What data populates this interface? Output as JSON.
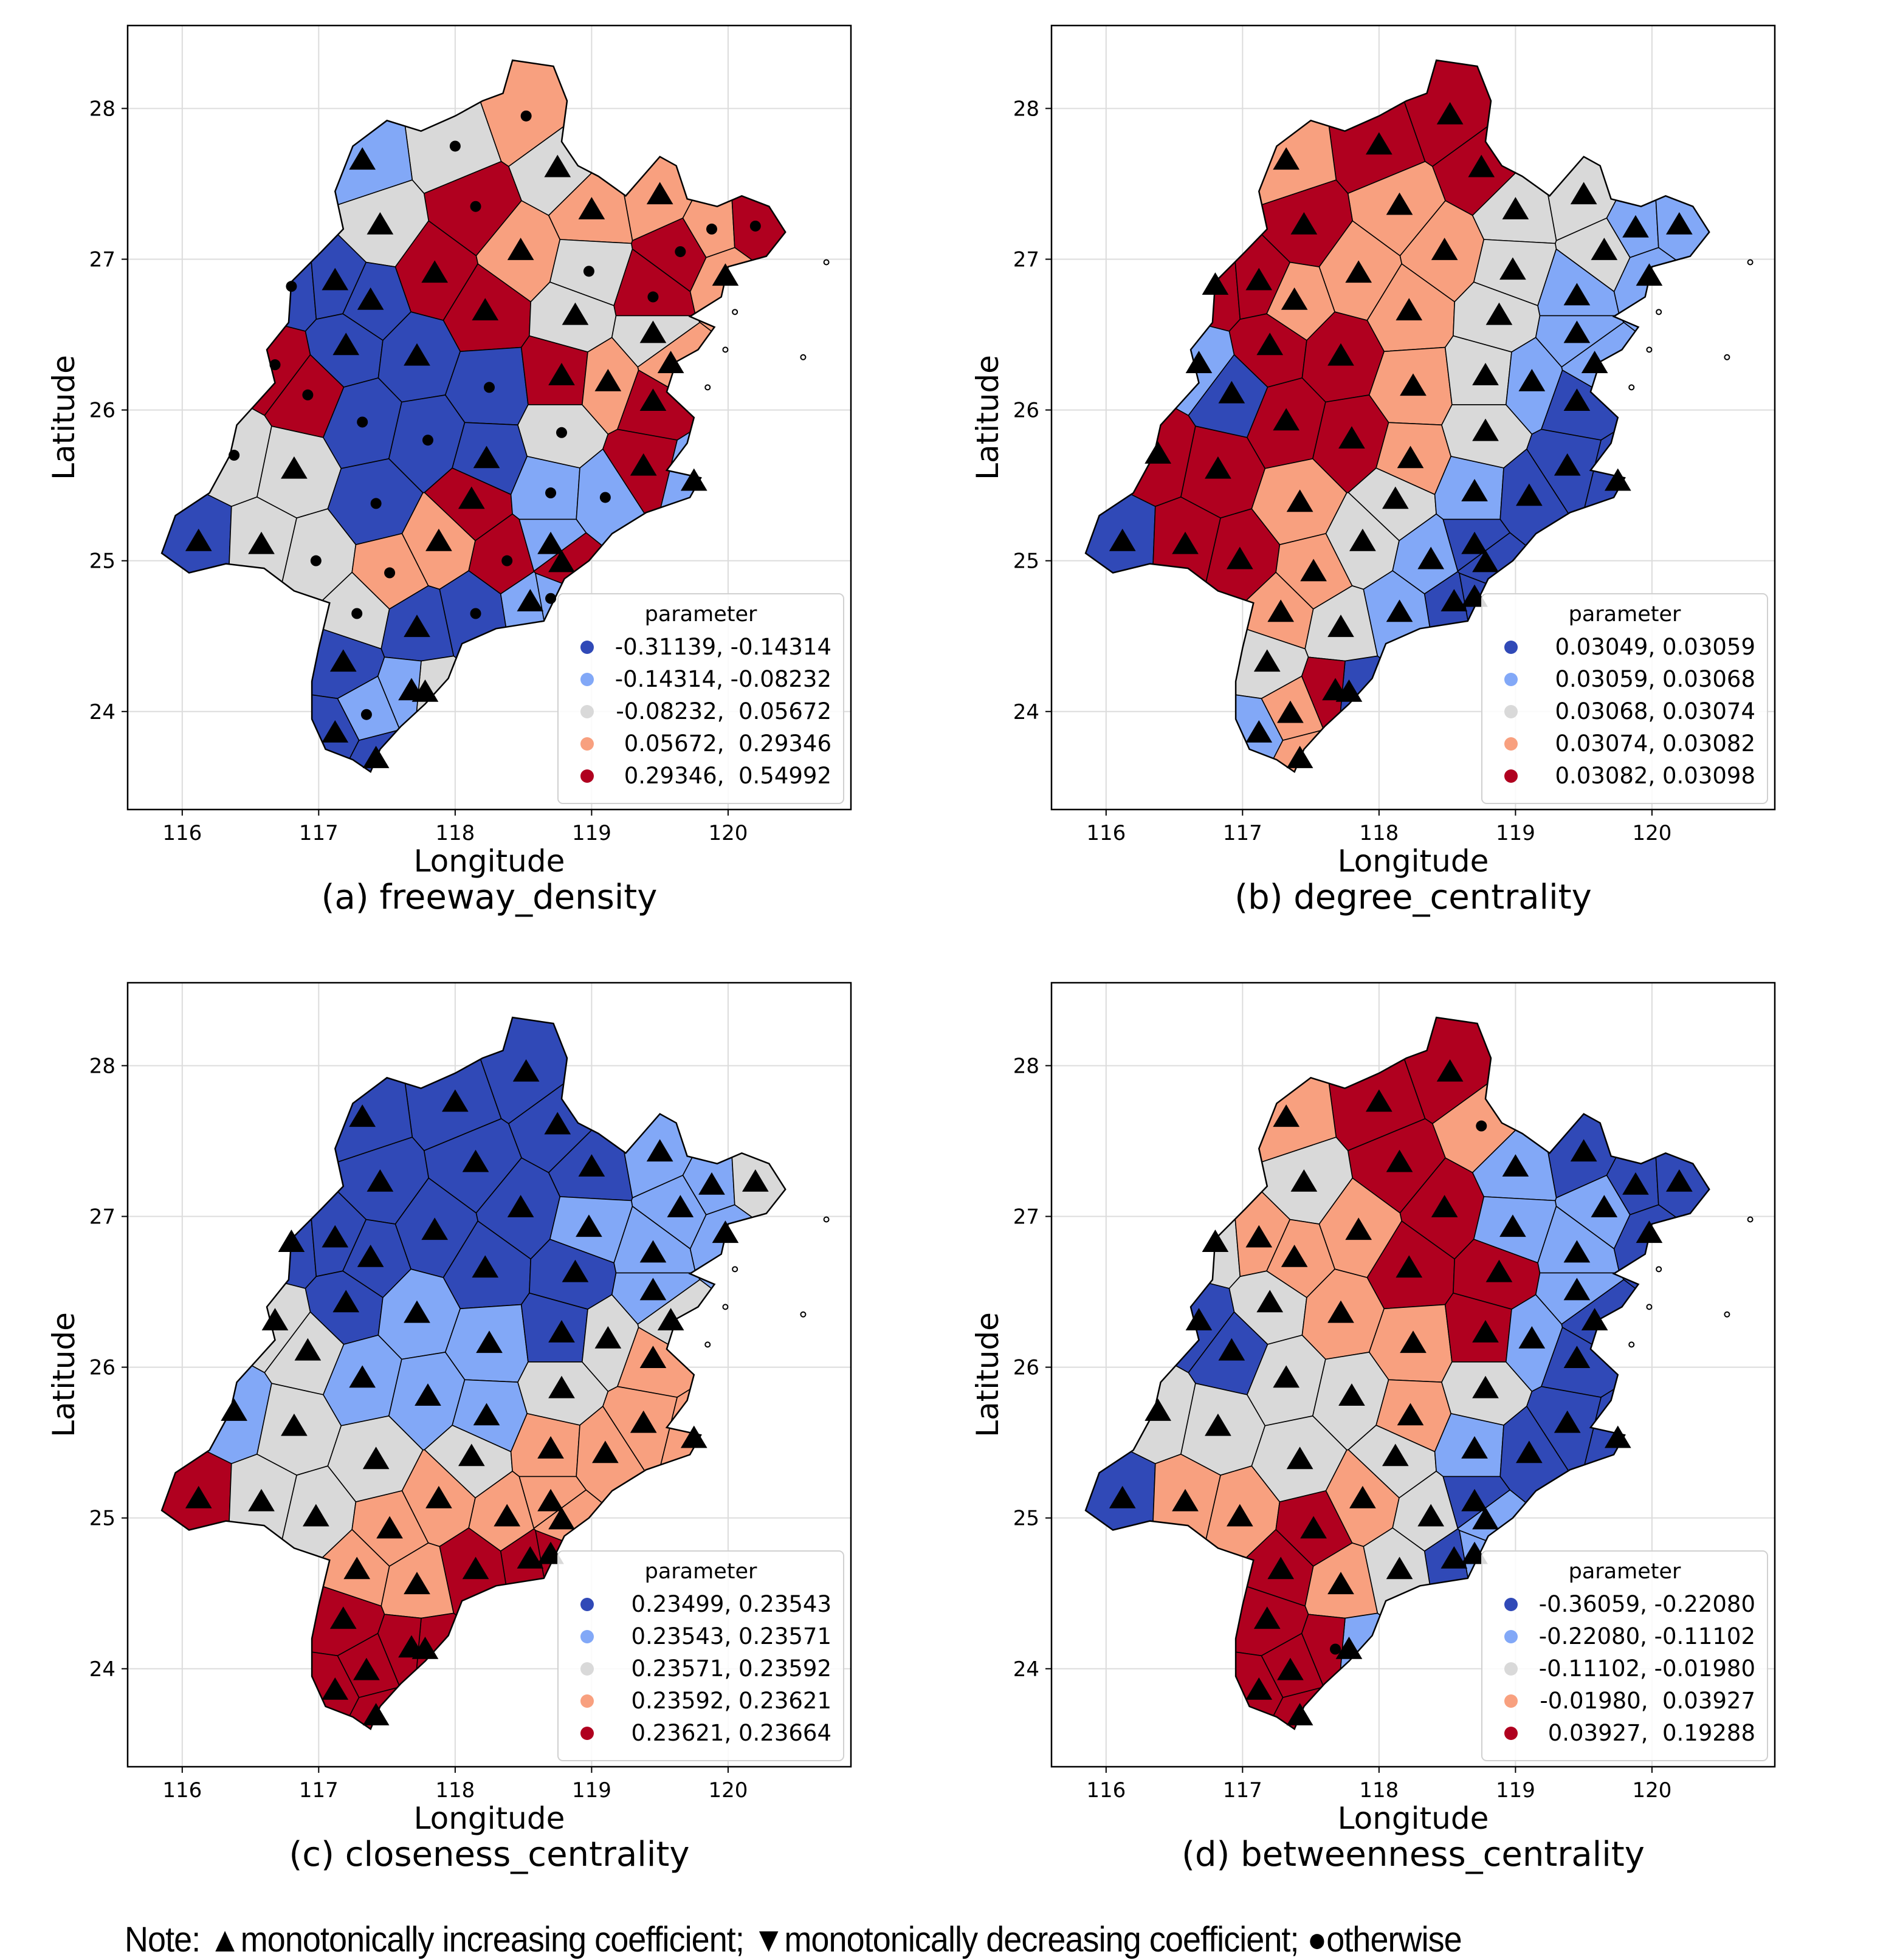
{
  "figure": {
    "note": {
      "prefix": "Note: ",
      "items": [
        {
          "symbol": "▲",
          "marker": "triangle-up",
          "text": "monotonically increasing coefficient; "
        },
        {
          "symbol": "▼",
          "marker": "triangle-down",
          "text": "monotonically decreasing coefficient; "
        },
        {
          "symbol": "●",
          "marker": "circle",
          "text": "otherwise"
        }
      ]
    },
    "class_colors": [
      "#3049b7",
      "#82a8f7",
      "#d9d9d9",
      "#f8a07f",
      "#b0001f"
    ]
  },
  "chart_data": [
    {
      "type": "choropleth",
      "id": "a",
      "title": "(a) freeway_density",
      "xlabel": "Longitude",
      "ylabel": "Latitude",
      "xlim": [
        115.6,
        120.9
      ],
      "ylim": [
        23.35,
        28.55
      ],
      "xticks": [
        "116",
        "117",
        "118",
        "119",
        "120"
      ],
      "yticks": [
        "24",
        "25",
        "26",
        "27",
        "28"
      ],
      "grid": true,
      "legend": {
        "title": "parameter",
        "position": "bottom-right",
        "entries": [
          "-0.31139, -0.14314",
          "-0.14314, -0.08232",
          "-0.08232,  0.05672",
          " 0.05672,  0.29346",
          " 0.29346,  0.54992"
        ]
      },
      "classes": [
        2,
        3,
        2,
        1,
        4,
        3,
        2,
        4,
        3,
        2,
        3,
        4,
        3,
        0,
        0,
        0,
        4,
        2,
        4,
        4,
        0,
        0,
        0,
        4,
        2,
        3,
        4,
        4,
        0,
        0,
        0,
        2,
        3,
        3,
        4,
        4,
        2,
        2,
        0,
        4,
        1,
        1,
        1,
        0,
        2,
        2,
        3,
        3,
        4,
        4,
        1,
        1,
        2,
        0,
        0,
        1,
        2,
        1,
        0,
        0,
        1,
        0
      ],
      "markers": [
        "c",
        "c",
        "t",
        "t",
        "c",
        "t",
        "t",
        "t",
        "t",
        "c",
        "t",
        "c",
        "c",
        "c",
        "t",
        "t",
        "t",
        "t",
        "c",
        "c",
        "t",
        "t",
        "c",
        "t",
        "t",
        "t",
        "c",
        "c",
        "c",
        "c",
        "t",
        "c",
        "t",
        "t",
        "t",
        "t",
        "c",
        "t",
        "c",
        "t",
        "c",
        "c",
        "t",
        "t",
        "t",
        "c",
        "c",
        "t",
        "c",
        "t",
        "t",
        "t",
        "c",
        "t",
        "c",
        "c",
        "t",
        "c",
        "t",
        "t",
        "t",
        "t"
      ]
    },
    {
      "type": "choropleth",
      "id": "b",
      "title": "(b) degree_centrality",
      "xlabel": "Longitude",
      "ylabel": "Latitude",
      "xlim": [
        115.6,
        120.9
      ],
      "ylim": [
        23.35,
        28.55
      ],
      "xticks": [
        "116",
        "117",
        "118",
        "119",
        "120"
      ],
      "yticks": [
        "24",
        "25",
        "26",
        "27",
        "28"
      ],
      "grid": true,
      "legend": {
        "title": "parameter",
        "position": "bottom-right",
        "entries": [
          "0.03049, 0.03059",
          "0.03059, 0.03068",
          "0.03068, 0.03074",
          "0.03074, 0.03082",
          "0.03082, 0.03098"
        ]
      },
      "classes": [
        4,
        4,
        4,
        3,
        3,
        3,
        4,
        3,
        2,
        2,
        2,
        2,
        1,
        4,
        4,
        3,
        3,
        2,
        1,
        1,
        4,
        4,
        3,
        2,
        1,
        1,
        1,
        0,
        4,
        4,
        3,
        2,
        1,
        1,
        0,
        0,
        4,
        4,
        3,
        2,
        1,
        0,
        0,
        0,
        4,
        4,
        3,
        2,
        1,
        0,
        0,
        0,
        3,
        2,
        1,
        0,
        0,
        3,
        2,
        1,
        4,
        3
      ],
      "markers": [
        "t",
        "t",
        "t",
        "t",
        "t",
        "t",
        "t",
        "t",
        "t",
        "t",
        "t",
        "t",
        "t",
        "t",
        "t",
        "t",
        "t",
        "t",
        "t",
        "t",
        "t",
        "t",
        "t",
        "t",
        "t",
        "t",
        "t",
        "t",
        "t",
        "t",
        "t",
        "t",
        "t",
        "t",
        "t",
        "t",
        "t",
        "t",
        "t",
        "t",
        "t",
        "t",
        "t",
        "t",
        "t",
        "t",
        "t",
        "t",
        "t",
        "t",
        "t",
        "t",
        "t",
        "t",
        "t",
        "t",
        "t",
        "t",
        "t",
        "t",
        "t",
        "t"
      ]
    },
    {
      "type": "choropleth",
      "id": "c",
      "title": "(c) closeness_centrality",
      "xlabel": "Longitude",
      "ylabel": "Latitude",
      "xlim": [
        115.6,
        120.9
      ],
      "ylim": [
        23.35,
        28.55
      ],
      "xticks": [
        "116",
        "117",
        "118",
        "119",
        "120"
      ],
      "yticks": [
        "24",
        "25",
        "26",
        "27",
        "28"
      ],
      "grid": true,
      "legend": {
        "title": "parameter",
        "position": "bottom-right",
        "entries": [
          "0.23499, 0.23543",
          "0.23543, 0.23571",
          "0.23571, 0.23592",
          "0.23592, 0.23621",
          "0.23621, 0.23664"
        ]
      },
      "classes": [
        0,
        0,
        0,
        0,
        0,
        0,
        0,
        0,
        0,
        1,
        1,
        1,
        1,
        0,
        0,
        0,
        0,
        0,
        1,
        2,
        0,
        1,
        1,
        0,
        1,
        1,
        2,
        2,
        1,
        1,
        1,
        2,
        2,
        2,
        3,
        3,
        1,
        2,
        2,
        2,
        3,
        3,
        3,
        4,
        2,
        2,
        3,
        3,
        3,
        3,
        3,
        4,
        3,
        3,
        4,
        4,
        4,
        4,
        4,
        4,
        4,
        4
      ],
      "markers": [
        "t",
        "t",
        "t",
        "t",
        "t",
        "t",
        "t",
        "t",
        "t",
        "t",
        "t",
        "t",
        "t",
        "t",
        "t",
        "t",
        "t",
        "t",
        "t",
        "t",
        "t",
        "t",
        "t",
        "t",
        "t",
        "t",
        "t",
        "t",
        "t",
        "t",
        "t",
        "t",
        "t",
        "t",
        "t",
        "t",
        "t",
        "t",
        "t",
        "t",
        "t",
        "t",
        "t",
        "t",
        "t",
        "t",
        "t",
        "t",
        "t",
        "t",
        "t",
        "t",
        "t",
        "t",
        "t",
        "t",
        "t",
        "t",
        "t",
        "t",
        "t",
        "t"
      ]
    },
    {
      "type": "choropleth",
      "id": "d",
      "title": "(d) betweenness_centrality",
      "xlabel": "Longitude",
      "ylabel": "Latitude",
      "xlim": [
        115.6,
        120.9
      ],
      "ylim": [
        23.35,
        28.55
      ],
      "xticks": [
        "116",
        "117",
        "118",
        "119",
        "120"
      ],
      "yticks": [
        "24",
        "25",
        "26",
        "27",
        "28"
      ],
      "grid": true,
      "legend": {
        "title": "parameter",
        "position": "bottom-right",
        "entries": [
          "-0.36059, -0.22080",
          "-0.22080, -0.11102",
          "-0.11102, -0.01980",
          "-0.01980,  0.03927",
          " 0.03927,  0.19288"
        ]
      },
      "classes": [
        4,
        4,
        3,
        3,
        4,
        4,
        2,
        3,
        1,
        1,
        0,
        1,
        0,
        2,
        3,
        3,
        4,
        4,
        1,
        0,
        2,
        3,
        3,
        4,
        1,
        0,
        0,
        0,
        2,
        2,
        3,
        2,
        1,
        0,
        0,
        0,
        2,
        2,
        2,
        2,
        1,
        0,
        0,
        0,
        3,
        3,
        4,
        3,
        2,
        1,
        0,
        0,
        4,
        3,
        2,
        1,
        1,
        4,
        4,
        4,
        4,
        4
      ],
      "markers": [
        "t",
        "t",
        "c",
        "t",
        "t",
        "t",
        "t",
        "t",
        "t",
        "t",
        "t",
        "t",
        "t",
        "t",
        "t",
        "t",
        "t",
        "t",
        "t",
        "t",
        "t",
        "t",
        "t",
        "t",
        "t",
        "t",
        "t",
        "t",
        "t",
        "t",
        "t",
        "t",
        "t",
        "t",
        "t",
        "t",
        "t",
        "t",
        "t",
        "t",
        "t",
        "t",
        "t",
        "t",
        "t",
        "t",
        "t",
        "t",
        "t",
        "t",
        "t",
        "t",
        "t",
        "t",
        "t",
        "t",
        "t",
        "t",
        "t",
        "t",
        "c",
        "t"
      ]
    }
  ]
}
